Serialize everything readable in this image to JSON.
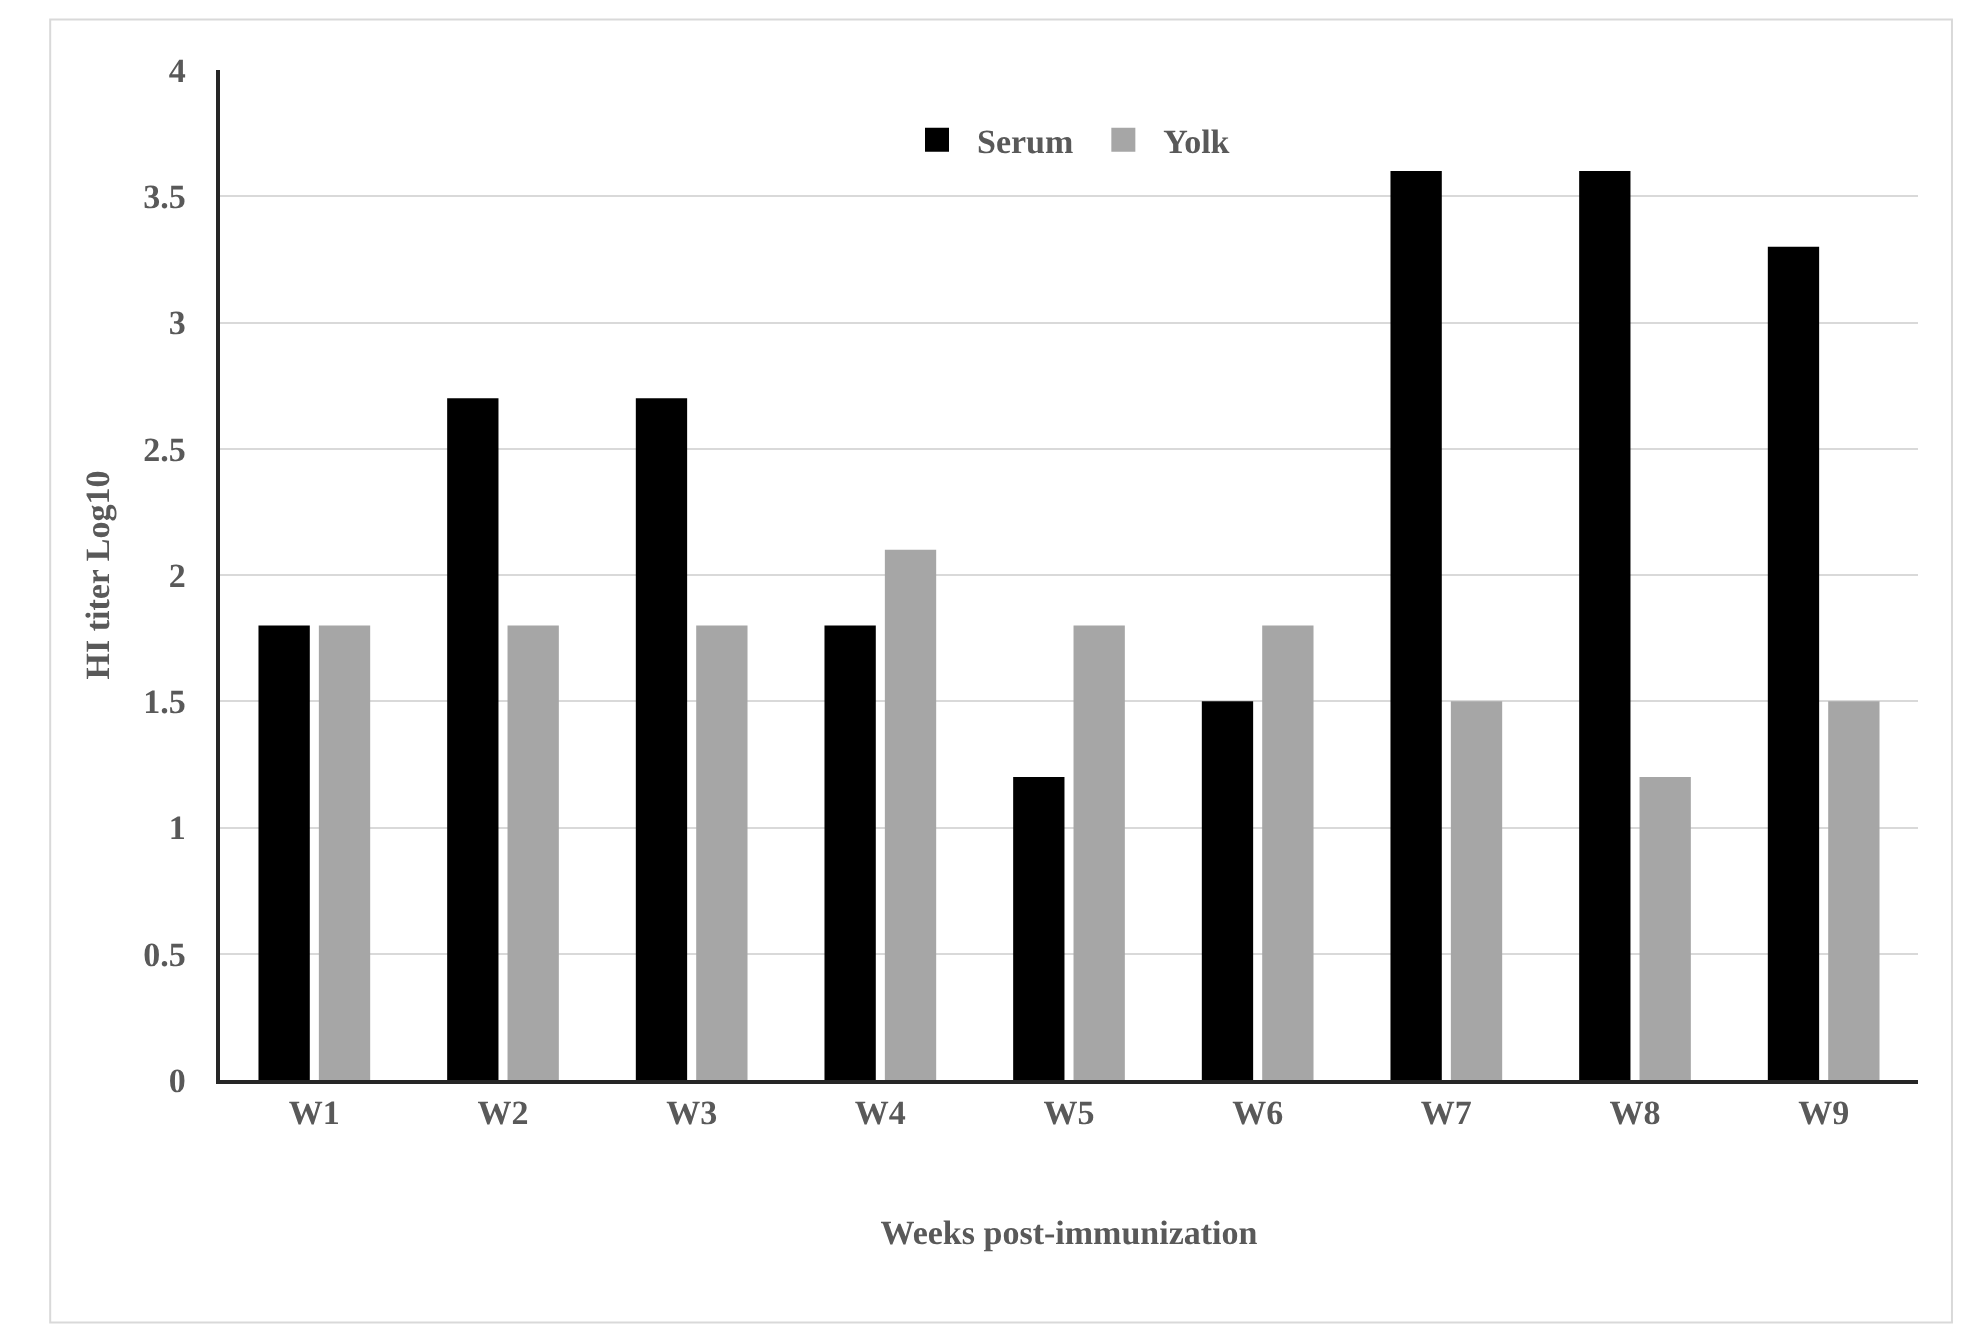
{
  "chart_data": {
    "type": "bar",
    "categories": [
      "W1",
      "W2",
      "W3",
      "W4",
      "W5",
      "W6",
      "W7",
      "W8",
      "W9"
    ],
    "series": [
      {
        "name": "Serum",
        "color": "#000000",
        "values": [
          1.8,
          2.7,
          2.7,
          1.8,
          1.2,
          1.5,
          3.6,
          3.6,
          3.3
        ]
      },
      {
        "name": "Yolk",
        "color": "#a6a6a6",
        "values": [
          1.8,
          1.8,
          1.8,
          2.1,
          1.8,
          1.8,
          1.5,
          1.2,
          1.5
        ]
      }
    ],
    "xlabel": "Weeks post-immunization",
    "ylabel": "HI titer Log10",
    "ylim": [
      0,
      4
    ],
    "yticks": [
      0,
      0.5,
      1,
      1.5,
      2,
      2.5,
      3,
      3.5,
      4
    ],
    "grid": "y",
    "legend": "top"
  }
}
